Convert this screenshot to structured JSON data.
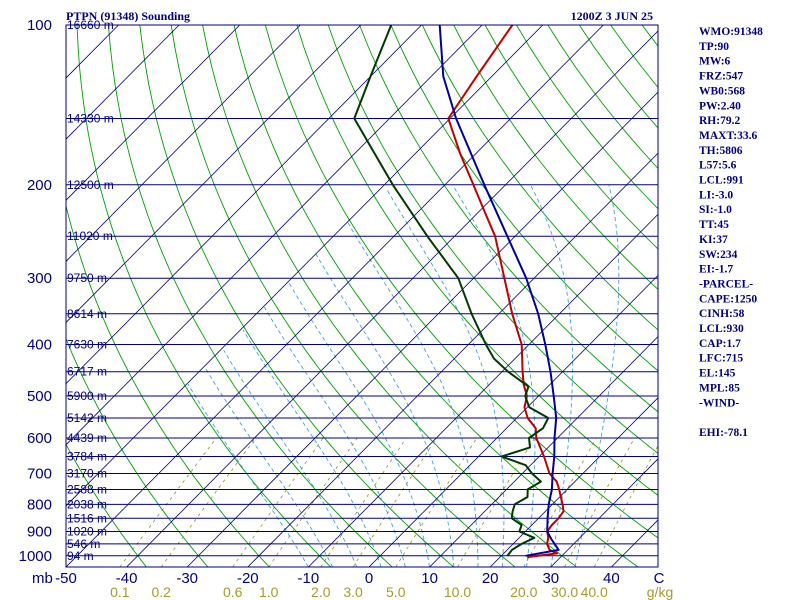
{
  "header": {
    "station": "PTPN (91348) Sounding",
    "datetime": "1200Z  3 JUN 25"
  },
  "chart_data": {
    "type": "line",
    "title": "PTPN (91348) Sounding",
    "x_axis_unit": "mb",
    "pressure_levels": [
      100,
      200,
      300,
      400,
      500,
      600,
      700,
      800,
      900,
      1000
    ],
    "temperature_ticks": [
      -50,
      -40,
      -30,
      -20,
      -10,
      0,
      10,
      20,
      30,
      40
    ],
    "mixing_ratio_ticks": [
      "0.1",
      "0.2",
      "0.6",
      "1.0",
      "2.0",
      "3.0",
      "5.0",
      "10.0",
      "20.0",
      "30.0",
      "40.0"
    ],
    "mixing_ratio_unit": "g/kg",
    "height_labels": [
      {
        "p": 100,
        "label": "16660 m"
      },
      {
        "p": 150,
        "label": "14330 m"
      },
      {
        "p": 200,
        "label": "12500 m"
      },
      {
        "p": 250,
        "label": "11020 m"
      },
      {
        "p": 300,
        "label": "9750 m"
      },
      {
        "p": 350,
        "label": "8614 m"
      },
      {
        "p": 400,
        "label": "7630 m"
      },
      {
        "p": 450,
        "label": "6717 m"
      },
      {
        "p": 500,
        "label": "5900 m"
      },
      {
        "p": 550,
        "label": "5142 m"
      },
      {
        "p": 600,
        "label": "4439 m"
      },
      {
        "p": 650,
        "label": "3784 m"
      },
      {
        "p": 700,
        "label": "3170 m"
      },
      {
        "p": 750,
        "label": "2588 m"
      },
      {
        "p": 800,
        "label": "2038 m"
      },
      {
        "p": 850,
        "label": "1516 m"
      },
      {
        "p": 900,
        "label": "1020 m"
      },
      {
        "p": 950,
        "label": "546 m"
      },
      {
        "p": 1000,
        "label": "94 m"
      }
    ],
    "series": [
      {
        "id": "temperature",
        "color": "#c00000",
        "points": [
          [
            1006,
            24.5
          ],
          [
            990,
            28.8
          ],
          [
            975,
            27
          ],
          [
            950,
            25.6
          ],
          [
            925,
            24.8
          ],
          [
            900,
            23.6
          ],
          [
            875,
            23.3
          ],
          [
            850,
            23.3
          ],
          [
            825,
            23
          ],
          [
            800,
            21.7
          ],
          [
            775,
            20.2
          ],
          [
            750,
            18.7
          ],
          [
            725,
            17
          ],
          [
            700,
            14.5
          ],
          [
            650,
            10.8
          ],
          [
            600,
            6.5
          ],
          [
            575,
            4.8
          ],
          [
            550,
            1.8
          ],
          [
            525,
            -0.5
          ],
          [
            500,
            -1.9
          ],
          [
            475,
            -4.4
          ],
          [
            450,
            -6.6
          ],
          [
            400,
            -11.2
          ],
          [
            350,
            -17.8
          ],
          [
            300,
            -24.9
          ],
          [
            250,
            -33.3
          ],
          [
            225,
            -39
          ],
          [
            200,
            -45.3
          ],
          [
            175,
            -52.5
          ],
          [
            150,
            -60.3
          ],
          [
            125,
            -62.5
          ],
          [
            100,
            -65
          ]
        ]
      },
      {
        "id": "dewpoint",
        "color": "#003a00",
        "points": [
          [
            1000,
            21
          ],
          [
            975,
            20.8
          ],
          [
            950,
            21.4
          ],
          [
            925,
            22.5
          ],
          [
            900,
            19
          ],
          [
            875,
            18.3
          ],
          [
            850,
            15.6
          ],
          [
            825,
            14.6
          ],
          [
            800,
            13.8
          ],
          [
            775,
            14.7
          ],
          [
            750,
            13.5
          ],
          [
            725,
            14.4
          ],
          [
            700,
            11.6
          ],
          [
            675,
            9.2
          ],
          [
            650,
            3.8
          ],
          [
            625,
            7
          ],
          [
            600,
            5.3
          ],
          [
            575,
            6
          ],
          [
            550,
            5.2
          ],
          [
            525,
            0.3
          ],
          [
            500,
            -2.2
          ],
          [
            480,
            -3.2
          ],
          [
            450,
            -9
          ],
          [
            425,
            -13.5
          ],
          [
            400,
            -17.1
          ],
          [
            350,
            -24.5
          ],
          [
            300,
            -32.5
          ],
          [
            250,
            -44.5
          ],
          [
            200,
            -58.6
          ],
          [
            150,
            -75.8
          ],
          [
            125,
            -80
          ],
          [
            100,
            -85
          ]
        ]
      },
      {
        "id": "parcel",
        "color": "#0000a0",
        "points": [
          [
            1000,
            24
          ],
          [
            975,
            28.5
          ],
          [
            930,
            25.5
          ],
          [
            900,
            23.6
          ],
          [
            850,
            21.5
          ],
          [
            800,
            19.4
          ],
          [
            750,
            17.5
          ],
          [
            700,
            15
          ],
          [
            650,
            12.5
          ],
          [
            600,
            9.5
          ],
          [
            550,
            6.5
          ],
          [
            500,
            2.5
          ],
          [
            450,
            -2
          ],
          [
            400,
            -7.3
          ],
          [
            350,
            -13.5
          ],
          [
            300,
            -21.3
          ],
          [
            250,
            -31.3
          ],
          [
            200,
            -43.5
          ],
          [
            150,
            -59
          ],
          [
            125,
            -68
          ],
          [
            100,
            -77
          ]
        ]
      }
    ],
    "indices": [
      "WMO:91348",
      "TP:90",
      "MW:6",
      "FRZ:547",
      "WB0:568",
      "PW:2.40",
      "RH:79.2",
      "MAXT:33.6",
      "TH:5806",
      "L57:5.6",
      "LCL:991",
      "LI:-3.0",
      "SI:-1.0",
      "TT:45",
      "KI:37",
      "SW:234",
      "EI:-1.7",
      "-PARCEL-",
      "CAPE:1250",
      "CINH:58",
      "LCL:930",
      "CAP:1.7",
      "LFC:715",
      "EL:145",
      "MPL:85",
      "-WIND-",
      "",
      "EHI:-78.1"
    ],
    "colors": {
      "isobar": "#000080",
      "isotherm": "#000080",
      "dry_adiabat": "#00a000",
      "moist_adiabat": "#40a0e0",
      "mixing_ratio": "#909020",
      "temperature": "#c00000",
      "dewpoint": "#003a00",
      "parcel": "#0000a0"
    }
  }
}
